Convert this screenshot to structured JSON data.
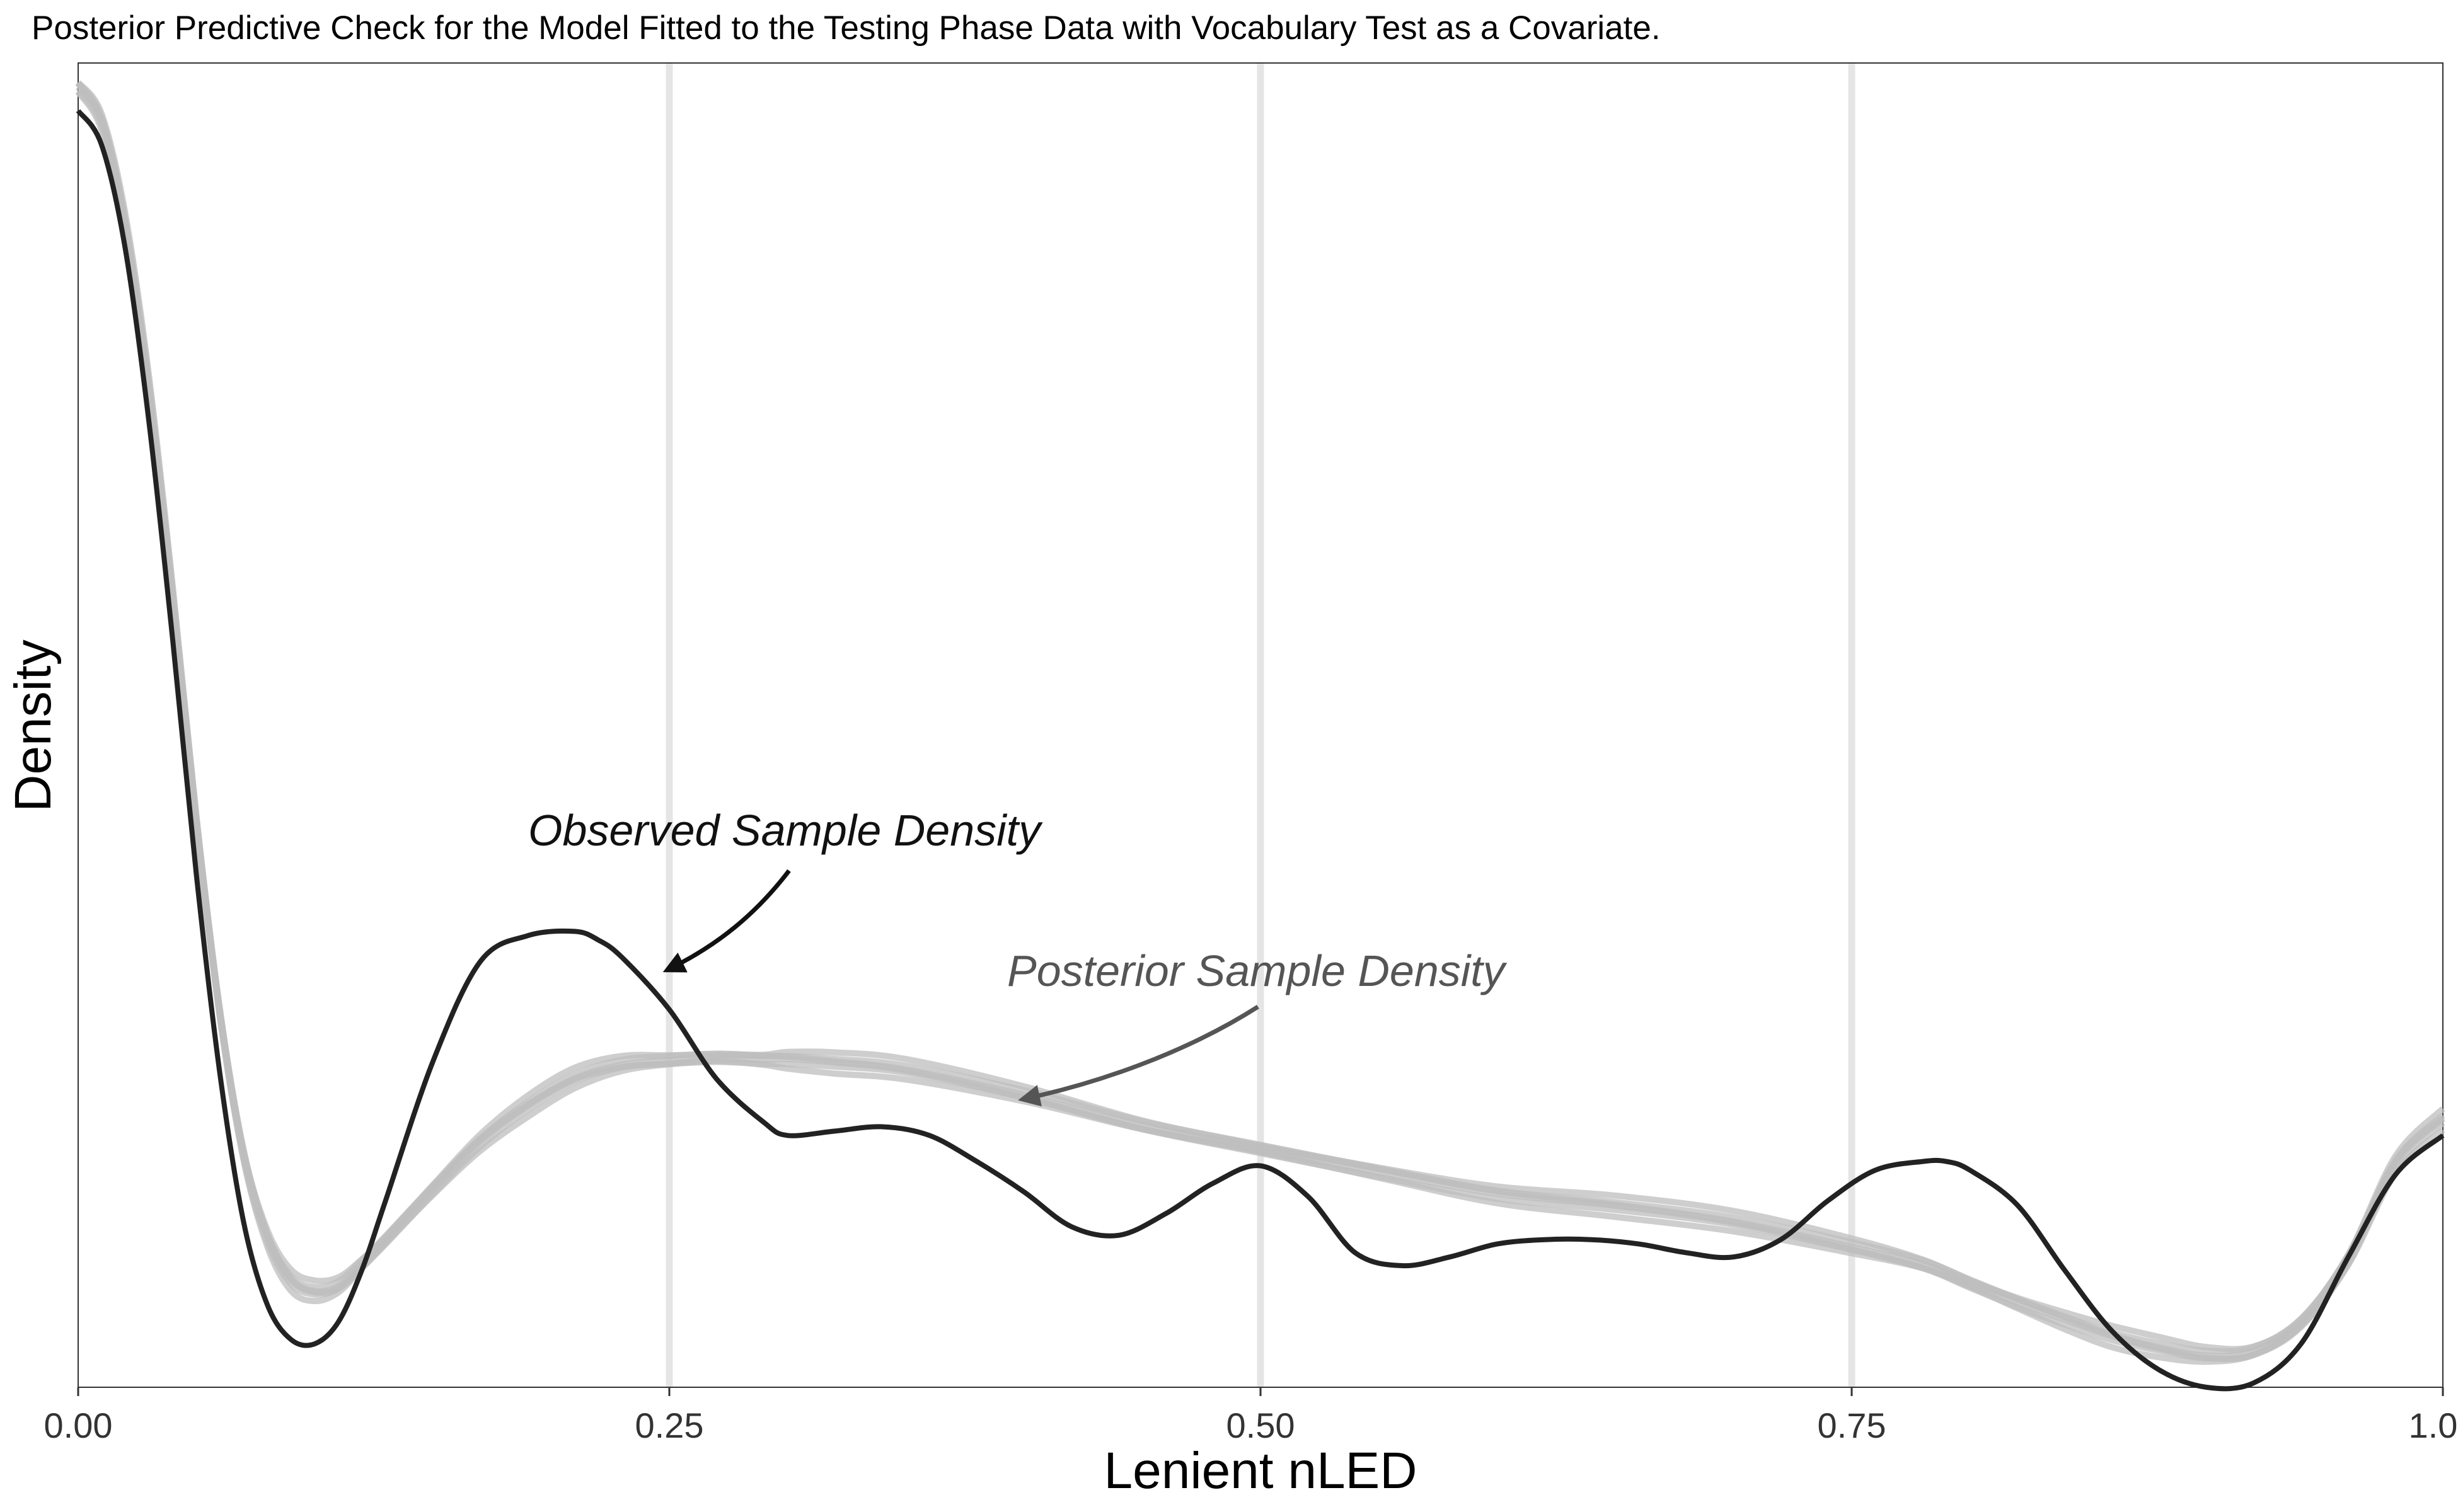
{
  "chart_data": {
    "type": "line",
    "title": "Posterior Predictive Check for the Model Fitted to the Testing Phase Data with Vocabulary Test as a Covariate.",
    "xlabel": "Lenient nLED",
    "ylabel": "Density",
    "xlim": [
      0,
      1
    ],
    "ylim": [
      0,
      3.05
    ],
    "x_ticks": [
      0,
      0.25,
      0.5,
      0.75,
      1
    ],
    "x_tick_labels": [
      "0.00",
      "0.25",
      "0.50",
      "0.75",
      "1.00"
    ],
    "y_ticks_shown": false,
    "grid": "vertical major lines only",
    "colors": {
      "observed": "#222222",
      "posterior": "#bdbdbd",
      "grid": "#e5e5e5",
      "annotation_posterior": "#555555"
    },
    "series": [
      {
        "name": "Observed Sample Density",
        "x": [
          0,
          0.01,
          0.02,
          0.03,
          0.04,
          0.05,
          0.06,
          0.07,
          0.08,
          0.09,
          0.1,
          0.11,
          0.12,
          0.13,
          0.15,
          0.17,
          0.19,
          0.21,
          0.22,
          0.23,
          0.25,
          0.27,
          0.29,
          0.3,
          0.32,
          0.34,
          0.36,
          0.38,
          0.4,
          0.42,
          0.44,
          0.46,
          0.48,
          0.5,
          0.52,
          0.54,
          0.56,
          0.58,
          0.6,
          0.62,
          0.64,
          0.66,
          0.68,
          0.7,
          0.72,
          0.74,
          0.76,
          0.78,
          0.79,
          0.8,
          0.82,
          0.84,
          0.86,
          0.88,
          0.9,
          0.92,
          0.94,
          0.96,
          0.98,
          1.0
        ],
        "y": [
          2.94,
          2.86,
          2.62,
          2.22,
          1.72,
          1.18,
          0.72,
          0.38,
          0.19,
          0.11,
          0.1,
          0.15,
          0.27,
          0.43,
          0.75,
          0.98,
          1.04,
          1.05,
          1.03,
          0.99,
          0.87,
          0.71,
          0.61,
          0.58,
          0.59,
          0.6,
          0.58,
          0.52,
          0.45,
          0.37,
          0.35,
          0.4,
          0.47,
          0.51,
          0.44,
          0.31,
          0.28,
          0.3,
          0.33,
          0.34,
          0.34,
          0.33,
          0.31,
          0.3,
          0.34,
          0.43,
          0.5,
          0.52,
          0.52,
          0.5,
          0.42,
          0.27,
          0.13,
          0.04,
          0.0,
          0.01,
          0.1,
          0.3,
          0.49,
          0.58
        ]
      },
      {
        "name": "Posterior Sample Density",
        "x": [
          0,
          0.01,
          0.02,
          0.03,
          0.04,
          0.05,
          0.06,
          0.07,
          0.08,
          0.09,
          0.1,
          0.11,
          0.12,
          0.13,
          0.15,
          0.17,
          0.19,
          0.21,
          0.23,
          0.25,
          0.27,
          0.29,
          0.3,
          0.32,
          0.35,
          0.4,
          0.45,
          0.5,
          0.55,
          0.6,
          0.65,
          0.7,
          0.75,
          0.78,
          0.8,
          0.82,
          0.84,
          0.86,
          0.88,
          0.9,
          0.92,
          0.94,
          0.96,
          0.98,
          1.0
        ],
        "y": [
          3.0,
          2.92,
          2.68,
          2.3,
          1.82,
          1.3,
          0.86,
          0.54,
          0.35,
          0.25,
          0.22,
          0.23,
          0.28,
          0.34,
          0.46,
          0.57,
          0.65,
          0.71,
          0.74,
          0.75,
          0.76,
          0.76,
          0.76,
          0.75,
          0.73,
          0.67,
          0.6,
          0.55,
          0.5,
          0.45,
          0.42,
          0.38,
          0.32,
          0.28,
          0.24,
          0.2,
          0.16,
          0.12,
          0.09,
          0.07,
          0.08,
          0.15,
          0.3,
          0.52,
          0.62
        ]
      }
    ],
    "annotations": [
      {
        "text": "Observed Sample Density",
        "style": "italic"
      },
      {
        "text": "Posterior Sample Density",
        "style": "italic"
      }
    ]
  }
}
